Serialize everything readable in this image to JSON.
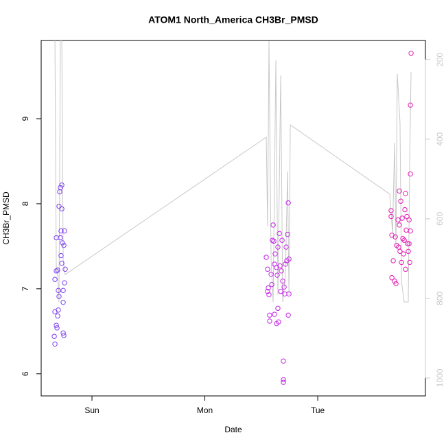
{
  "chart_data": {
    "type": "scatter",
    "title": "ATOM1 North_America CH3Br_PMSD",
    "xlabel": "Date",
    "ylabel": "CH3Br_PMSD",
    "xlim": [
      -0.45,
      2.954
    ],
    "ylim": [
      5.74,
      9.92
    ],
    "y2lim": [
      1045,
      152
    ],
    "xticks": [
      {
        "value": 0,
        "label": "Sun"
      },
      {
        "value": 1,
        "label": "Mon"
      },
      {
        "value": 2,
        "label": "Tue"
      }
    ],
    "yticks": [
      6,
      7,
      8,
      9
    ],
    "y2ticks": [
      200,
      400,
      600,
      800,
      1000
    ],
    "y2color": "#c8c8c8",
    "series": [
      {
        "color": "#7c3ff2",
        "mark": "points",
        "x": [
          -0.328,
          -0.334,
          -0.328,
          -0.316,
          -0.31,
          -0.304,
          -0.298,
          -0.292,
          -0.298,
          -0.304,
          -0.316,
          -0.328,
          -0.316,
          -0.292,
          -0.286,
          -0.28,
          -0.267,
          -0.274,
          -0.28,
          -0.274,
          -0.267,
          -0.261,
          -0.249,
          -0.243,
          -0.237,
          -0.243,
          -0.255,
          -0.255,
          -0.255,
          -0.249,
          -0.267
        ],
        "values": [
          6.35,
          6.44,
          6.73,
          6.57,
          6.54,
          6.68,
          6.75,
          6.91,
          6.98,
          7.22,
          7.21,
          7.11,
          7.6,
          7.97,
          8.14,
          8.19,
          8.22,
          7.68,
          7.6,
          7.39,
          7.3,
          7.54,
          7.51,
          7.68,
          7.23,
          7.07,
          6.98,
          6.84,
          6.48,
          6.45,
          7.94
        ]
      },
      {
        "color": "#c424e6",
        "mark": "points",
        "x": [
          1.574,
          1.574,
          1.617,
          1.647,
          1.653,
          1.635,
          1.696,
          1.696,
          1.696,
          1.739,
          1.556,
          1.568,
          1.562,
          1.544,
          1.556,
          1.587,
          1.599,
          1.605,
          1.617,
          1.623,
          1.635,
          1.647,
          1.66,
          1.666,
          1.678,
          1.684,
          1.69,
          1.702,
          1.708,
          1.72,
          1.726,
          1.733,
          1.739,
          1.745,
          1.745,
          1.593,
          1.672,
          1.641,
          1.611,
          1.714
        ],
        "values": [
          6.69,
          6.62,
          6.7,
          6.77,
          6.61,
          6.59,
          6.15,
          5.93,
          5.9,
          6.69,
          6.97,
          6.93,
          7.01,
          7.37,
          7.23,
          7.17,
          7.57,
          7.75,
          7.29,
          7.41,
          7.25,
          7.49,
          7.65,
          7.27,
          7.21,
          7.57,
          7.09,
          7.02,
          6.94,
          7.49,
          7.33,
          7.64,
          8.01,
          6.94,
          7.35,
          7.05,
          6.97,
          7.16,
          7.56,
          7.29
        ]
      },
      {
        "color": "#e618b4",
        "mark": "points",
        "x": [
          2.827,
          2.821,
          2.821,
          2.65,
          2.65,
          2.657,
          2.669,
          2.657,
          2.681,
          2.693,
          2.687,
          2.699,
          2.711,
          2.723,
          2.736,
          2.723,
          2.729,
          2.742,
          2.748,
          2.754,
          2.76,
          2.772,
          2.778,
          2.778,
          2.784,
          2.79,
          2.796,
          2.802,
          2.809,
          2.815,
          2.821,
          2.809,
          2.766,
          2.717
        ],
        "values": [
          9.77,
          9.16,
          8.35,
          7.92,
          7.85,
          7.63,
          7.33,
          7.13,
          7.09,
          7.06,
          7.61,
          7.51,
          7.81,
          8.15,
          8.03,
          7.75,
          7.44,
          7.31,
          7.83,
          7.59,
          7.41,
          7.93,
          8.12,
          7.23,
          7.69,
          7.85,
          7.53,
          7.44,
          7.81,
          7.31,
          7.68,
          7.53,
          7.57,
          7.49
        ]
      },
      {
        "color": "#c8c8c8",
        "mark": "line",
        "axis": "y2",
        "x": [
          -0.334,
          -0.328,
          -0.316,
          -0.304,
          -0.292,
          -0.28,
          -0.267,
          -0.255,
          -0.237,
          1.544,
          1.556,
          1.568,
          1.587,
          1.605,
          1.629,
          1.647,
          1.672,
          1.69,
          1.714,
          1.733,
          1.745,
          1.757,
          2.638,
          2.663,
          2.681,
          2.693,
          2.705,
          2.729,
          2.742,
          2.766,
          2.802,
          2.815,
          2.827
        ],
        "values": [
          150,
          153,
          722,
          740,
          809,
          153,
          150,
          705,
          740,
          395,
          619,
          153,
          705,
          809,
          202,
          791,
          240,
          809,
          740,
          481,
          791,
          364,
          538,
          636,
          409,
          671,
          236,
          360,
          757,
          809,
          809,
          447,
          231
        ]
      }
    ]
  }
}
